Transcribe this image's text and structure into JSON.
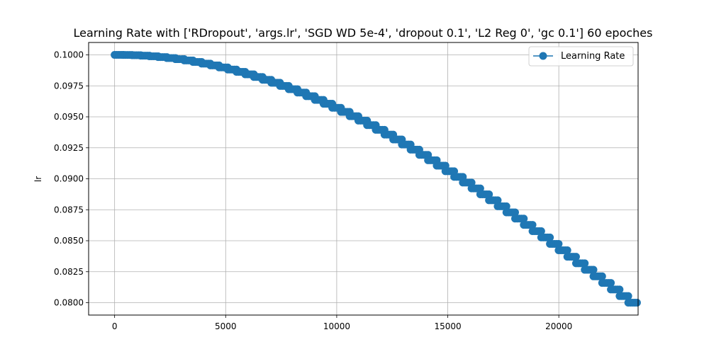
{
  "chart_data": {
    "type": "line",
    "title": "Learning Rate with ['RDropout', 'args.lr', 'SGD WD 5e-4', 'dropout 0.1', 'L2 Reg 0', 'gc 0.1'] 60 epoches",
    "xlabel": "",
    "ylabel": "lr",
    "xlim": [
      -1170,
      23570
    ],
    "ylim": [
      0.079,
      0.101
    ],
    "x_ticks": [
      0,
      5000,
      10000,
      15000,
      20000
    ],
    "x_tick_labels": [
      "0",
      "5000",
      "10000",
      "15000",
      "20000"
    ],
    "y_ticks": [
      0.08,
      0.0825,
      0.085,
      0.0875,
      0.09,
      0.0925,
      0.095,
      0.0975,
      0.1
    ],
    "y_tick_labels": [
      "0.0800",
      "0.0825",
      "0.0850",
      "0.0875",
      "0.0900",
      "0.0925",
      "0.0950",
      "0.0975",
      "0.1000"
    ],
    "grid": true,
    "legend_position": "top-right",
    "series": [
      {
        "name": "Learning Rate",
        "color": "#1f77b4",
        "marker": "circle",
        "epochs": 60,
        "steps_per_epoch": 392,
        "lr_start": 0.1,
        "lr_end": 0.08,
        "note_schedule": "stepwise cosine-like decay, constant within each epoch"
      }
    ]
  }
}
